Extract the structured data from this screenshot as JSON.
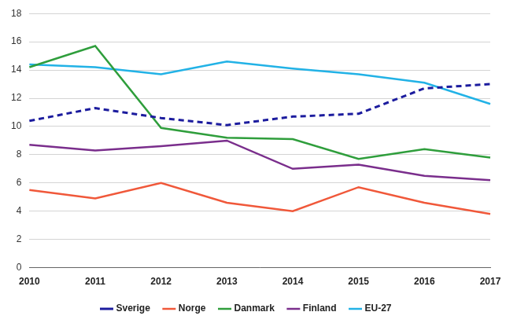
{
  "chart_data": {
    "type": "line",
    "categories": [
      "2010",
      "2011",
      "2012",
      "2013",
      "2014",
      "2015",
      "2016",
      "2017"
    ],
    "series": [
      {
        "name": "Sverige",
        "color": "#1c1c9e",
        "line_style": "dashed",
        "values": [
          10.4,
          11.3,
          10.6,
          10.1,
          10.7,
          10.9,
          12.7,
          13.0
        ]
      },
      {
        "name": "Norge",
        "color": "#f0583a",
        "line_style": "solid",
        "values": [
          5.5,
          4.9,
          6.0,
          4.6,
          4.0,
          5.7,
          4.6,
          3.8
        ]
      },
      {
        "name": "Danmark",
        "color": "#2f9e3c",
        "line_style": "solid",
        "values": [
          14.2,
          15.7,
          9.9,
          9.2,
          9.1,
          7.7,
          8.4,
          7.8
        ]
      },
      {
        "name": "Finland",
        "color": "#7a2e8c",
        "line_style": "solid",
        "values": [
          8.7,
          8.3,
          8.6,
          9.0,
          7.0,
          7.3,
          6.5,
          6.2
        ]
      },
      {
        "name": "EU-27",
        "color": "#22b2e6",
        "line_style": "solid",
        "values": [
          14.4,
          14.2,
          13.7,
          14.6,
          14.1,
          13.7,
          13.1,
          11.6
        ]
      }
    ],
    "ylim": [
      0,
      18
    ],
    "yticks": [
      0,
      2,
      4,
      6,
      8,
      10,
      12,
      14,
      16,
      18
    ],
    "grid": true,
    "legend": "bottom"
  }
}
